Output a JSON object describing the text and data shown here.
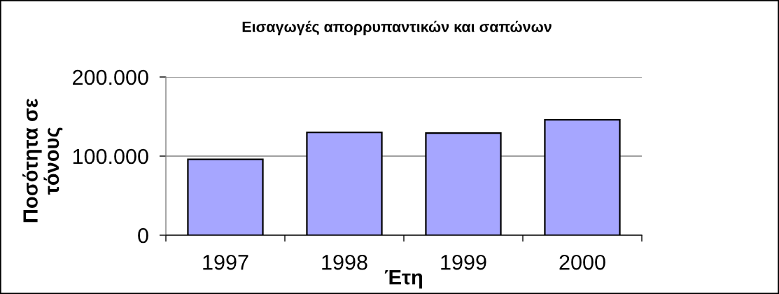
{
  "chart_data": {
    "type": "bar",
    "title": "Εισαγωγές απορρυπαντικών και σαπώνων",
    "xlabel": "Έτη",
    "ylabel": "Ποσότητα σε\nτόνους",
    "categories": [
      "1997",
      "1998",
      "1999",
      "2000"
    ],
    "values": [
      96000,
      130000,
      129000,
      146000
    ],
    "color": "#a6a6ff",
    "ylim": [
      0,
      200000
    ],
    "yticks": [
      0,
      {
        "value": 100000,
        "label": "100.000"
      },
      {
        "value": 200000,
        "label": "200.000"
      }
    ],
    "grid": "y"
  }
}
